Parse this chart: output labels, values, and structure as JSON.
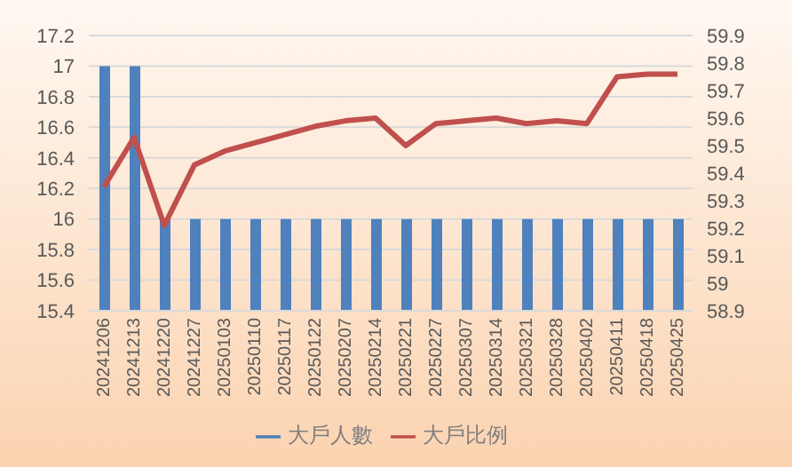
{
  "chart_data": {
    "type": "bar",
    "categories": [
      "20241206",
      "20241213",
      "20241220",
      "20241227",
      "20250103",
      "20250110",
      "20250117",
      "20250122",
      "20250207",
      "20250214",
      "20250221",
      "20250227",
      "20250307",
      "20250314",
      "20250321",
      "20250328",
      "20250402",
      "20250411",
      "20250418",
      "20250425"
    ],
    "series": [
      {
        "name": "大戶人數",
        "color": "#4f81bd",
        "values": [
          17,
          17,
          16,
          16,
          16,
          16,
          16,
          16,
          16,
          16,
          16,
          16,
          16,
          16,
          16,
          16,
          16,
          16,
          16,
          16
        ]
      },
      {
        "name": "大戶比例",
        "type": "line",
        "axis": "y2",
        "color": "#c0504d",
        "marker": "none",
        "line_style": "solid",
        "values": [
          59.35,
          59.53,
          59.21,
          59.43,
          59.48,
          59.51,
          59.54,
          59.57,
          59.59,
          59.6,
          59.5,
          59.58,
          59.59,
          59.6,
          59.58,
          59.59,
          59.58,
          59.75,
          59.76,
          59.76
        ]
      }
    ],
    "ylim": [
      15.4,
      17.2
    ],
    "yticks": [
      15.4,
      15.6,
      15.8,
      16,
      16.2,
      16.4,
      16.6,
      16.8,
      17,
      17.2
    ],
    "y2lim": [
      58.9,
      59.9
    ],
    "y2ticks": [
      58.9,
      59,
      59.1,
      59.2,
      59.3,
      59.4,
      59.5,
      59.6,
      59.7,
      59.8,
      59.9
    ],
    "grid": "y",
    "legend": "bottom"
  }
}
